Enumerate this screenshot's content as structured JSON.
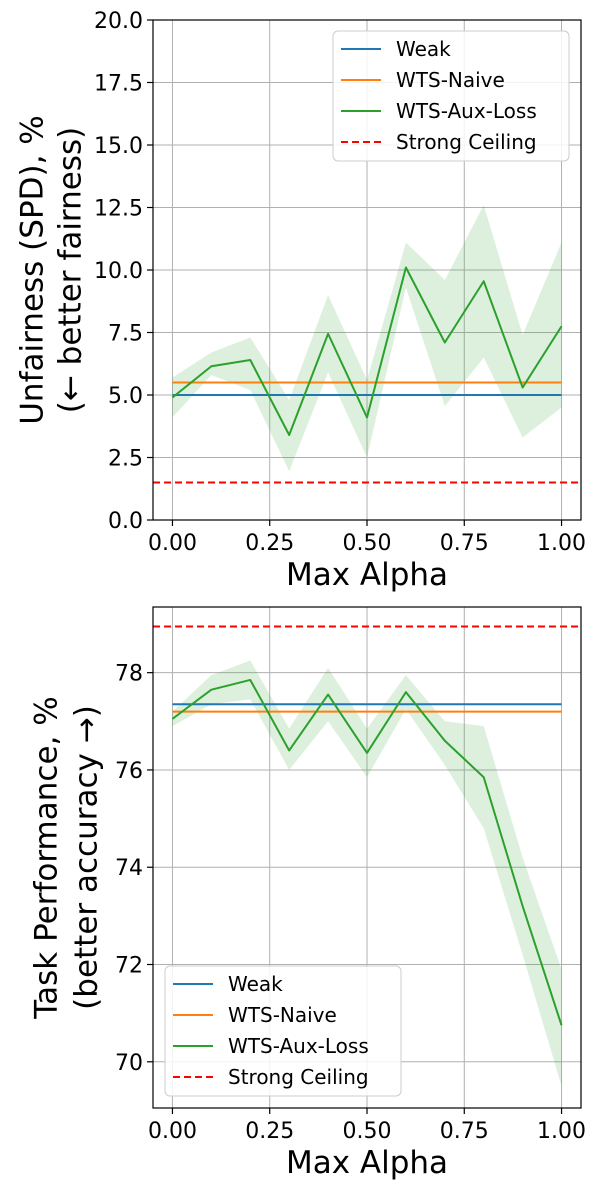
{
  "colors": {
    "weak": "#1f77b4",
    "wts_naive": "#ff7f0e",
    "wts_aux": "#2ca02c",
    "ceiling": "#ff0000",
    "band": "#2ca02c",
    "grid": "#b0b0b0"
  },
  "chart_data": [
    {
      "type": "line",
      "xlabel": "Max Alpha",
      "ylabel_lines": [
        "Unfairness (SPD), %",
        "(← better fairness)"
      ],
      "xlim": [
        -0.05,
        1.05
      ],
      "ylim": [
        0,
        20
      ],
      "xticks": [
        0.0,
        0.25,
        0.5,
        0.75,
        1.0
      ],
      "xtick_labels": [
        "0.00",
        "0.25",
        "0.50",
        "0.75",
        "1.00"
      ],
      "yticks": [
        0,
        2.5,
        5,
        7.5,
        10,
        12.5,
        15,
        17.5,
        20
      ],
      "ytick_labels": [
        "0.0",
        "2.5",
        "5.0",
        "7.5",
        "10.0",
        "12.5",
        "15.0",
        "17.5",
        "20.0"
      ],
      "grid": true,
      "legend_position": "top-right",
      "x": [
        0.0,
        0.1,
        0.2,
        0.3,
        0.4,
        0.5,
        0.6,
        0.7,
        0.8,
        0.9,
        1.0
      ],
      "series": [
        {
          "name": "Weak",
          "key": "weak",
          "style": "solid",
          "constant": 5.0
        },
        {
          "name": "WTS-Naive",
          "key": "wts_naive",
          "style": "solid",
          "constant": 5.5
        },
        {
          "name": "WTS-Aux-Loss",
          "key": "wts_aux",
          "style": "solid",
          "values": [
            4.9,
            6.15,
            6.4,
            3.4,
            7.45,
            4.1,
            10.1,
            7.1,
            9.55,
            5.3,
            7.75
          ],
          "band_low": [
            4.1,
            5.8,
            5.2,
            1.95,
            5.9,
            2.5,
            9.3,
            4.55,
            6.5,
            3.3,
            4.5
          ],
          "band_high": [
            5.7,
            6.7,
            7.3,
            4.8,
            9.0,
            5.6,
            11.1,
            9.6,
            12.6,
            7.4,
            11.1
          ]
        },
        {
          "name": "Strong Ceiling",
          "key": "ceiling",
          "style": "dashed",
          "constant": 1.5
        }
      ]
    },
    {
      "type": "line",
      "xlabel": "Max Alpha",
      "ylabel_lines": [
        "Task Performance, %",
        "(better accuracy →)"
      ],
      "xlim": [
        -0.05,
        1.05
      ],
      "ylim": [
        69.05,
        79.35
      ],
      "xticks": [
        0.0,
        0.25,
        0.5,
        0.75,
        1.0
      ],
      "xtick_labels": [
        "0.00",
        "0.25",
        "0.50",
        "0.75",
        "1.00"
      ],
      "yticks": [
        70,
        72,
        74,
        76,
        78
      ],
      "ytick_labels": [
        "70",
        "72",
        "74",
        "76",
        "78"
      ],
      "grid": true,
      "legend_position": "bottom-left",
      "x": [
        0.0,
        0.1,
        0.2,
        0.3,
        0.4,
        0.5,
        0.6,
        0.7,
        0.8,
        0.9,
        1.0
      ],
      "series": [
        {
          "name": "Weak",
          "key": "weak",
          "style": "solid",
          "constant": 77.35
        },
        {
          "name": "WTS-Naive",
          "key": "wts_naive",
          "style": "solid",
          "constant": 77.2
        },
        {
          "name": "WTS-Aux-Loss",
          "key": "wts_aux",
          "style": "solid",
          "values": [
            77.05,
            77.65,
            77.85,
            76.4,
            77.55,
            76.35,
            77.6,
            76.6,
            75.85,
            73.2,
            70.75
          ],
          "band_low": [
            76.9,
            77.35,
            77.45,
            76.0,
            77.0,
            75.85,
            77.25,
            76.1,
            74.8,
            72.2,
            69.5
          ],
          "band_high": [
            77.2,
            77.95,
            78.25,
            76.85,
            78.1,
            76.85,
            77.95,
            77.0,
            76.9,
            74.2,
            71.9
          ]
        },
        {
          "name": "Strong Ceiling",
          "key": "ceiling",
          "style": "dashed",
          "constant": 78.95
        }
      ]
    }
  ]
}
